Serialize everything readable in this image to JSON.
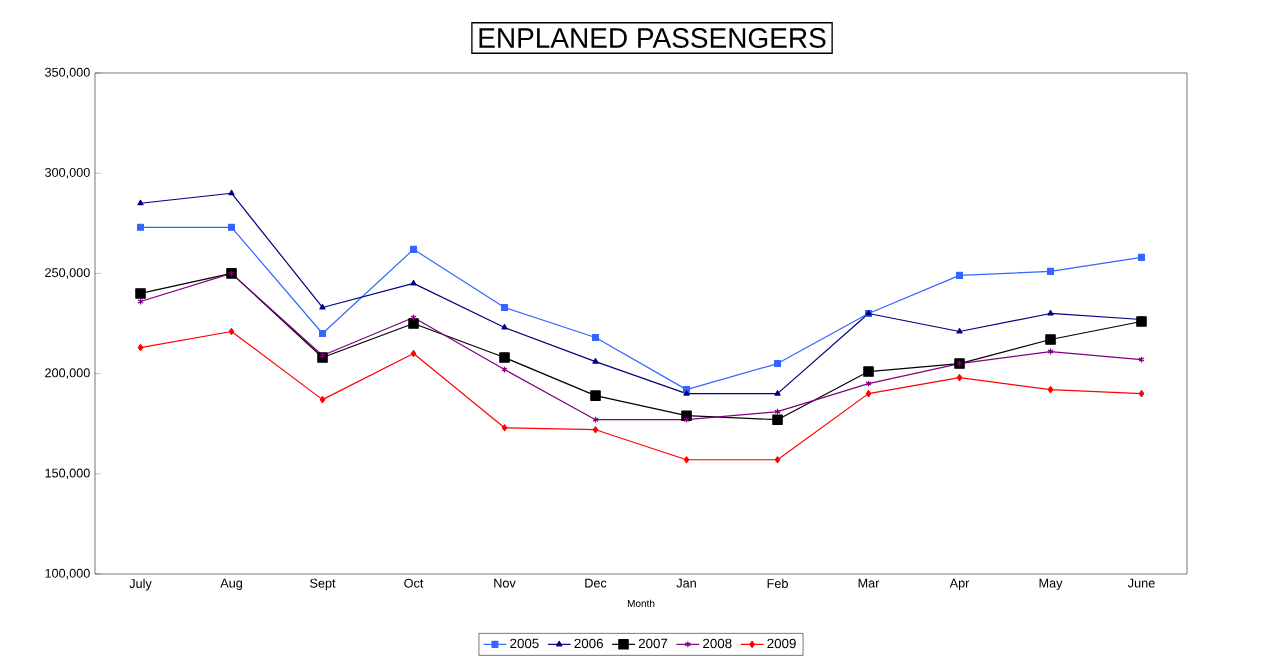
{
  "chart_data": {
    "type": "line",
    "title": "ENPLANED PASSENGERS",
    "xlabel": "Month",
    "categories": [
      "July",
      "Aug",
      "Sept",
      "Oct",
      "Nov",
      "Dec",
      "Jan",
      "Feb",
      "Mar",
      "Apr",
      "May",
      "June"
    ],
    "series": [
      {
        "name": "2005",
        "color": "#3366ff",
        "marker": "square",
        "values": [
          273000,
          273000,
          220000,
          262000,
          233000,
          218000,
          192000,
          205000,
          230000,
          249000,
          251000,
          258000
        ]
      },
      {
        "name": "2006",
        "color": "#000080",
        "marker": "triangle",
        "values": [
          285000,
          290000,
          233000,
          245000,
          223000,
          206000,
          190000,
          190000,
          230000,
          221000,
          230000,
          227000
        ]
      },
      {
        "name": "2007",
        "color": "#000000",
        "marker": "square",
        "values": [
          240000,
          250000,
          208000,
          225000,
          208000,
          189000,
          179000,
          177000,
          201000,
          205000,
          217000,
          226000
        ]
      },
      {
        "name": "2008",
        "color": "#800080",
        "marker": "cross",
        "values": [
          236000,
          250000,
          209000,
          228000,
          202000,
          177000,
          177000,
          181000,
          195000,
          205000,
          211000,
          207000
        ]
      },
      {
        "name": "2009",
        "color": "#ff0000",
        "marker": "diamond",
        "values": [
          213000,
          221000,
          187000,
          210000,
          173000,
          172000,
          157000,
          157000,
          190000,
          198000,
          192000,
          190000
        ]
      }
    ],
    "ylim": [
      100000,
      350000
    ],
    "yticks": [
      {
        "value": 100000,
        "label": "100,000"
      },
      {
        "value": 150000,
        "label": "150,000"
      },
      {
        "value": 200000,
        "label": "200,000"
      },
      {
        "value": 250000,
        "label": "250,000"
      },
      {
        "value": 300000,
        "label": "300,000"
      },
      {
        "value": 350000,
        "label": "350,000"
      }
    ],
    "grid": false,
    "legend": "bottom",
    "line_style": "solid"
  }
}
